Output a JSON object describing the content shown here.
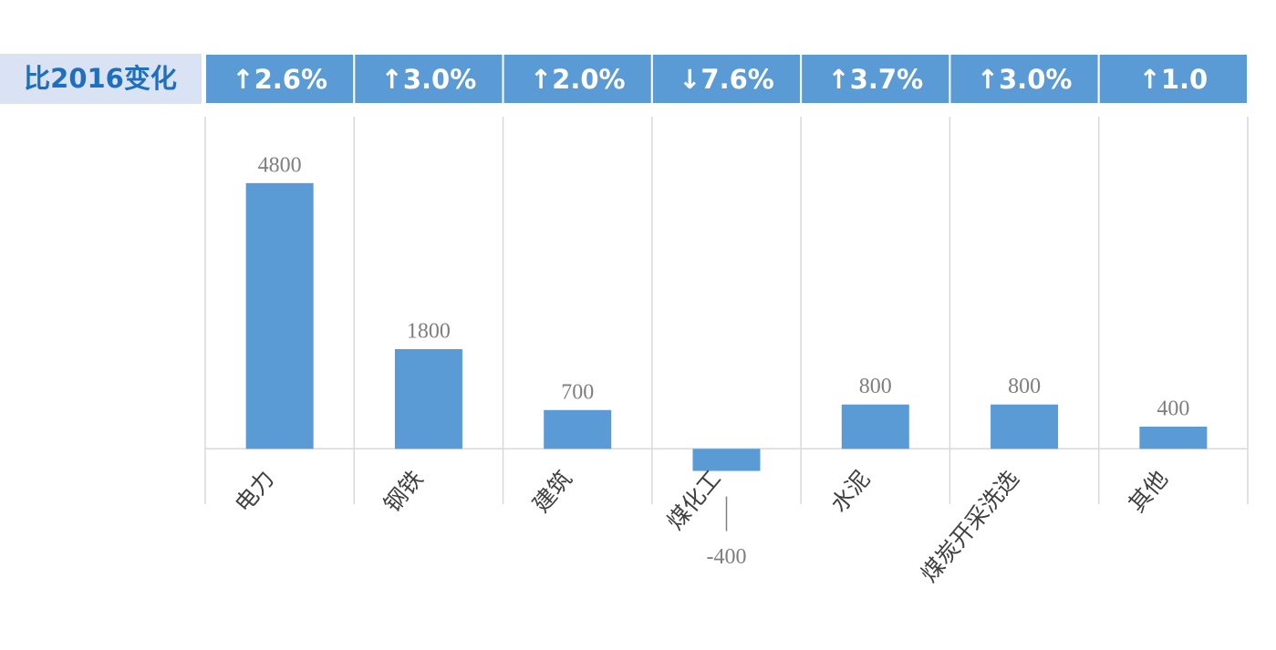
{
  "chart_data": {
    "type": "bar",
    "change_label": "比2016变化",
    "changes": [
      "↑2.6%",
      "↑3.0%",
      "↑2.0%",
      "↓7.6%",
      "↑3.7%",
      "↑3.0%",
      "↑1.0"
    ],
    "categories": [
      "电力",
      "钢铁",
      "建筑",
      "煤化工",
      "水泥",
      "煤炭开采洗选",
      "其他"
    ],
    "values": [
      4800,
      1800,
      700,
      -400,
      800,
      800,
      400
    ],
    "color": "#5b9bd5",
    "ylim": [
      -1000,
      6000
    ]
  }
}
